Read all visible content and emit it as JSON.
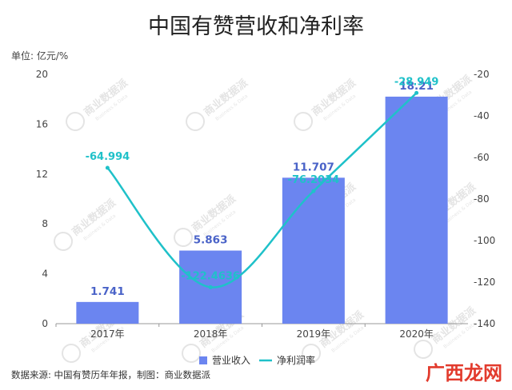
{
  "chart_data": {
    "type": "bar",
    "title": "中国有赞营收和净利率",
    "unit_label": "单位: 亿元/%",
    "categories": [
      "2017年",
      "2018年",
      "2019年",
      "2020年"
    ],
    "series": [
      {
        "name": "营业收入",
        "kind": "bar",
        "axis": "left",
        "values": [
          1.741,
          5.863,
          11.707,
          18.21
        ],
        "labels": [
          "1.741",
          "5.863",
          "11.707",
          "18.21"
        ],
        "color": "#6b85f0"
      },
      {
        "name": "净利润率",
        "kind": "line",
        "axis": "right",
        "values": [
          -64.994,
          -122.4636,
          -76.2034,
          -28.949
        ],
        "labels": [
          "-64.994",
          "-122.4636",
          "-76.2034",
          "-28.949"
        ],
        "color": "#1fc1c9"
      }
    ],
    "y_left": {
      "min": 0,
      "max": 20,
      "ticks": [
        0,
        4,
        8,
        12,
        16,
        20
      ]
    },
    "y_right": {
      "min": -140,
      "max": -20,
      "ticks": [
        -20,
        -40,
        -60,
        -80,
        -100,
        -120,
        -140
      ]
    },
    "legend_position": "bottom-center",
    "grid": false
  },
  "source_text": "数据来源: 中国有赞历年年报，制图：商业数据派",
  "watermark": {
    "text": "商业数据派",
    "subtext": "Business & Data"
  },
  "brand_mark": "广西龙网"
}
